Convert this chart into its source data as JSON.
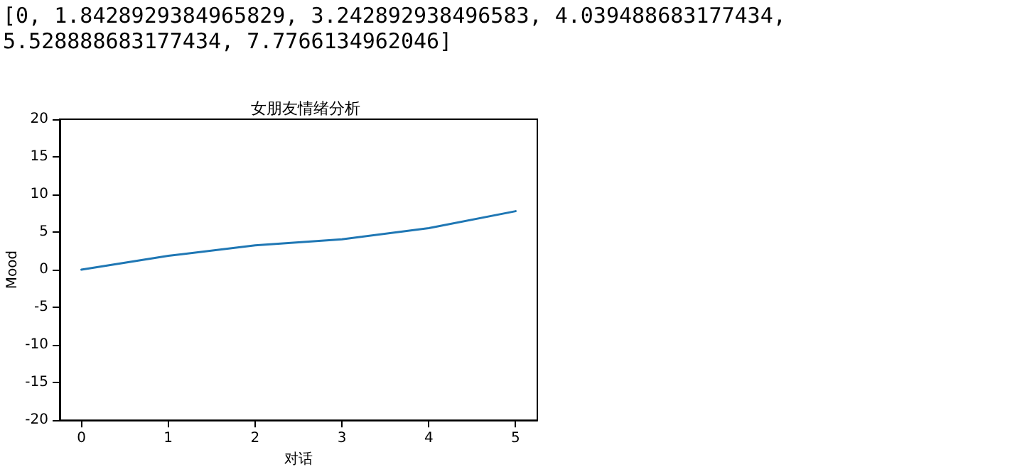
{
  "chart_data": {
    "type": "line",
    "title": "女朋友情绪分析",
    "xlabel": "对话",
    "ylabel": "Mood",
    "annotations": [
      "[0, 1.8428929384965829, 3.242892938496583, 4.039488683177434, 5.528888683177434, 7.7766134962046]"
    ],
    "x": [
      0,
      1,
      2,
      3,
      4,
      5
    ],
    "series": [
      {
        "color": "#1f77b4",
        "values": [
          0,
          1.8428929384965829,
          3.242892938496583,
          4.039488683177434,
          5.528888683177434,
          7.7766134962046
        ]
      }
    ],
    "xlim": [
      -0.25,
      5.25
    ],
    "xticks": [
      0,
      1,
      2,
      3,
      4,
      5
    ],
    "ylim": [
      -20,
      20
    ],
    "yticks": [
      -20,
      -15,
      -10,
      -5,
      0,
      5,
      10,
      15,
      20
    ],
    "marker": "none",
    "line_style": "solid"
  }
}
